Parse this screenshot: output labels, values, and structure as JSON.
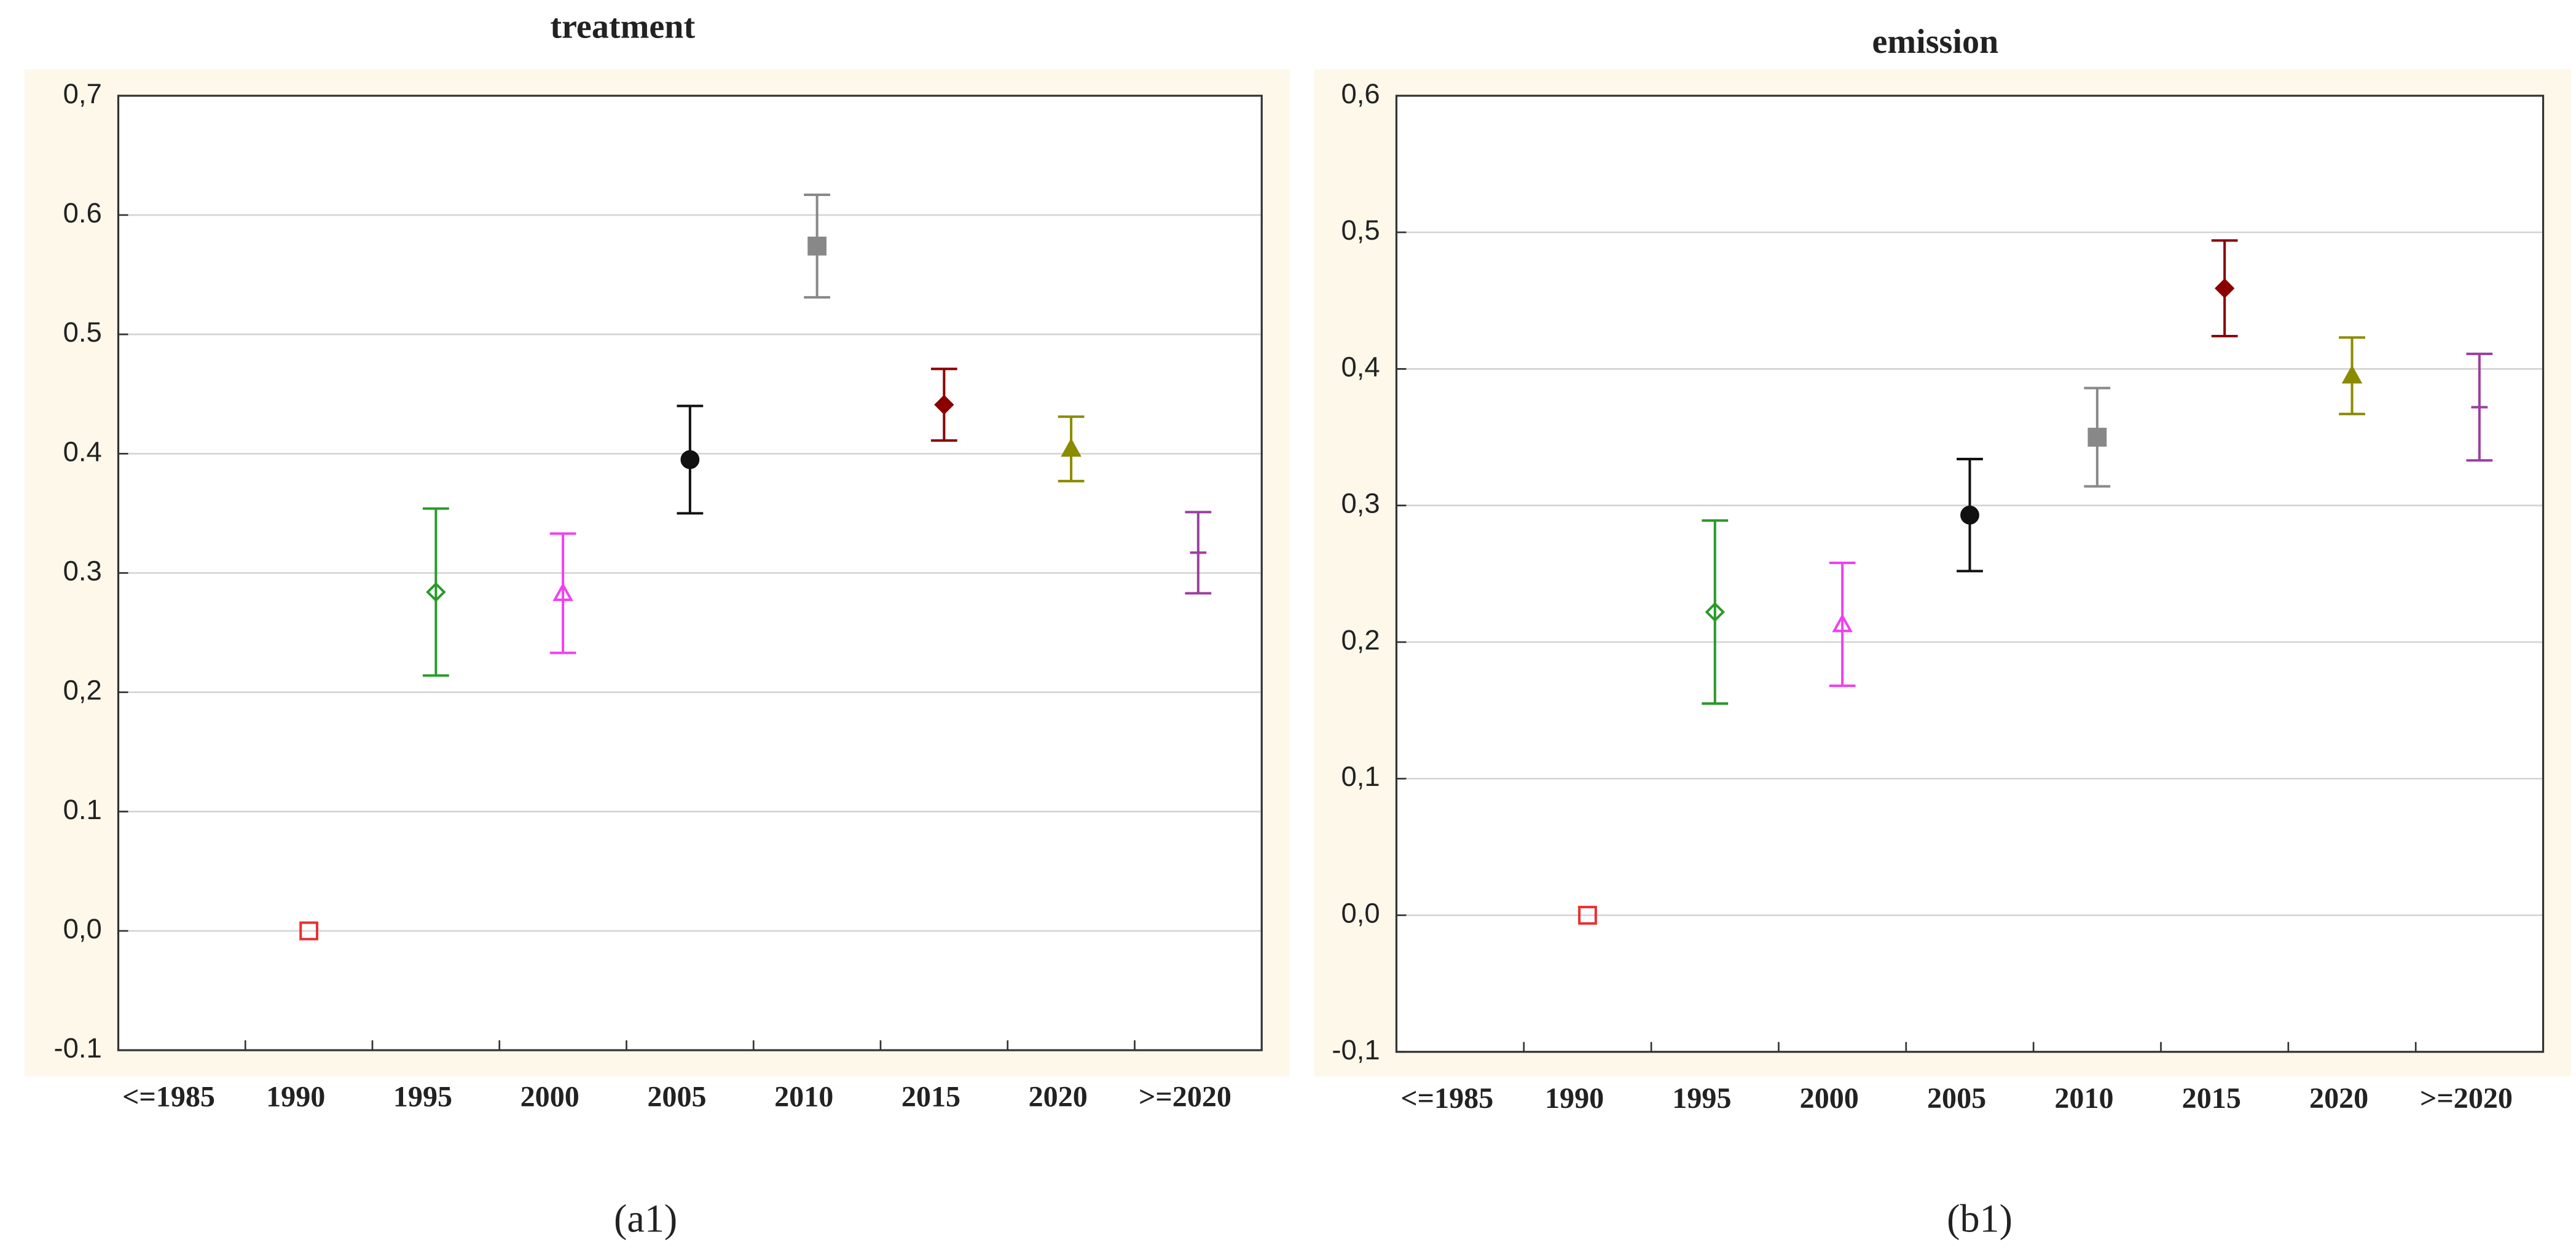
{
  "chart_data": [
    {
      "type": "errorbar",
      "title": "treatment",
      "caption": "(a1)",
      "categories": [
        "<=1985",
        "1990",
        "1995",
        "2000",
        "2005",
        "2010",
        "2015",
        "2020",
        ">=2020"
      ],
      "values": [
        null,
        0.0,
        0.284,
        0.283,
        0.395,
        0.574,
        0.441,
        0.404,
        0.317
      ],
      "errors": [
        null,
        0.0,
        0.07,
        0.05,
        0.045,
        0.043,
        0.03,
        0.027,
        0.034
      ],
      "colors": [
        null,
        "#e83030",
        "#2a9a2a",
        "#f040f0",
        "#111111",
        "#888888",
        "#8b0000",
        "#8b8b00",
        "#9b3fa0"
      ],
      "markers": [
        null,
        "square-open",
        "diamond-open",
        "triangle-open",
        "circle",
        "square",
        "diamond",
        "triangle",
        "dash"
      ],
      "ylim": [
        -0.1,
        0.7
      ],
      "yticks": [
        -0.1,
        {
          "value": 0.0,
          "label": "0,0"
        },
        0.1,
        {
          "value": 0.2,
          "label": "0,2"
        },
        0.3,
        0.4,
        0.5,
        0.6,
        {
          "value": 0.7,
          "label": "0,7"
        }
      ],
      "grid": true
    },
    {
      "type": "errorbar",
      "title": "emission",
      "caption": "(b1)",
      "categories": [
        "<=1985",
        "1990",
        "1995",
        "2000",
        "2005",
        "2010",
        "2015",
        "2020",
        ">=2020"
      ],
      "values": [
        null,
        0.0,
        0.222,
        0.213,
        0.293,
        0.35,
        0.459,
        0.395,
        0.372
      ],
      "errors": [
        null,
        0.0,
        0.067,
        0.045,
        0.041,
        0.036,
        0.035,
        0.028,
        0.039
      ],
      "colors": [
        null,
        "#e83030",
        "#2a9a2a",
        "#f040f0",
        "#111111",
        "#888888",
        "#8b0000",
        "#8b8b00",
        "#9b3fa0"
      ],
      "markers": [
        null,
        "square-open",
        "diamond-open",
        "triangle-open",
        "circle",
        "square",
        "diamond",
        "triangle",
        "dash"
      ],
      "ylim": [
        -0.1,
        0.6
      ],
      "yticks": [
        {
          "value": -0.1,
          "label": "-0,1"
        },
        {
          "value": 0.0,
          "label": "0,0"
        },
        {
          "value": 0.1,
          "label": "0,1"
        },
        {
          "value": 0.2,
          "label": "0,2"
        },
        {
          "value": 0.3,
          "label": "0,3"
        },
        {
          "value": 0.4,
          "label": "0,4"
        },
        {
          "value": 0.5,
          "label": "0,5"
        },
        {
          "value": 0.6,
          "label": "0,6"
        }
      ],
      "grid": true
    }
  ]
}
